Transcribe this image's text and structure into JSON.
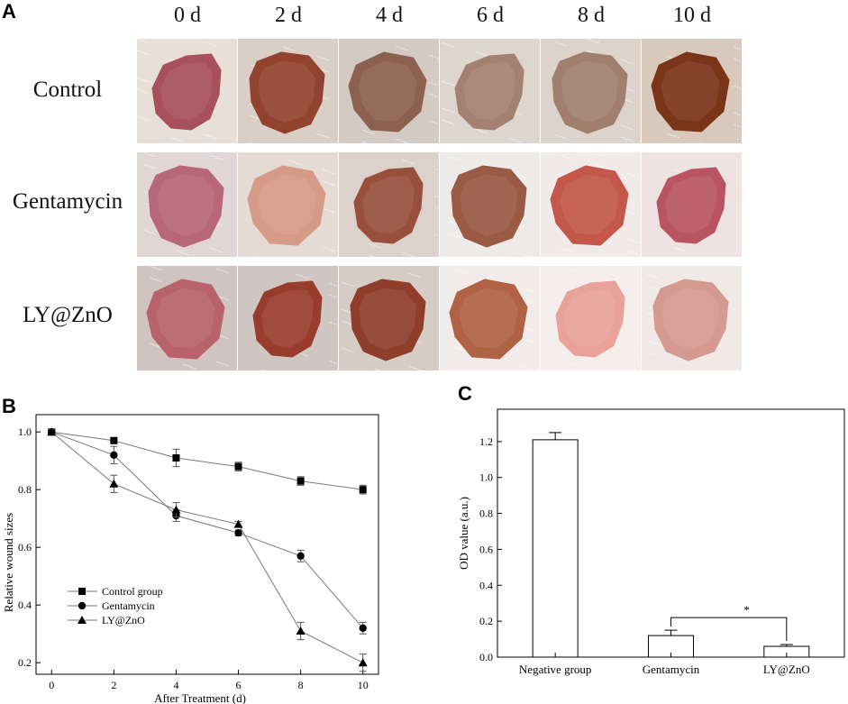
{
  "panels": {
    "a": {
      "letter": "A",
      "days": [
        "0 d",
        "2 d",
        "4 d",
        "6 d",
        "8 d",
        "10 d"
      ],
      "groups": [
        {
          "label": "Control",
          "wounds": [
            {
              "wound": "#a8505c",
              "skin": "#e9dfd9"
            },
            {
              "wound": "#92432f",
              "skin": "#d9cfc6"
            },
            {
              "wound": "#8d6150",
              "skin": "#d3cbc3"
            },
            {
              "wound": "#a4806f",
              "skin": "#ddd6cf"
            },
            {
              "wound": "#a07f6c",
              "skin": "#dcd4cc"
            },
            {
              "wound": "#7a3418",
              "skin": "#d8c9bc"
            }
          ]
        },
        {
          "label": "Gentamycin",
          "wounds": [
            {
              "wound": "#b86778",
              "skin": "#e0d6d3"
            },
            {
              "wound": "#d69b86",
              "skin": "#e6dbd4"
            },
            {
              "wound": "#98503c",
              "skin": "#dcd2cb"
            },
            {
              "wound": "#9a5a44",
              "skin": "#eeeae7"
            },
            {
              "wound": "#c3574a",
              "skin": "#f0ebe8"
            },
            {
              "wound": "#b85560",
              "skin": "#eee2e3"
            }
          ]
        },
        {
          "label": "LY@ZnO",
          "wounds": [
            {
              "wound": "#b8626a",
              "skin": "#cfc4bf"
            },
            {
              "wound": "#983c2e",
              "skin": "#cfc6c1"
            },
            {
              "wound": "#8f3e2c",
              "skin": "#d6ccc6"
            },
            {
              "wound": "#b06244",
              "skin": "#f1ece9"
            },
            {
              "wound": "#e8a29a",
              "skin": "#f4eeec"
            },
            {
              "wound": "#d49a90",
              "skin": "#f1e9e6"
            }
          ]
        }
      ]
    },
    "b": {
      "letter": "B"
    },
    "c": {
      "letter": "C"
    }
  },
  "chart_data": [
    {
      "type": "line",
      "panel": "B",
      "xlabel": "After Treatment (d)",
      "ylabel": "Relative wound sizes",
      "x": [
        0,
        2,
        4,
        6,
        8,
        10
      ],
      "xticks": [
        "0",
        "2",
        "4",
        "6",
        "8",
        "10"
      ],
      "yticks": [
        "0.2",
        "0.4",
        "0.6",
        "0.8",
        "1.0"
      ],
      "xlim": [
        -0.5,
        10.5
      ],
      "ylim": [
        0.16,
        1.06
      ],
      "legend_position": "bottom-left",
      "series": [
        {
          "name": "Control group",
          "marker": "square",
          "values": [
            1.0,
            0.97,
            0.91,
            0.88,
            0.83,
            0.8
          ],
          "errors": [
            0.01,
            0.01,
            0.03,
            0.015,
            0.015,
            0.015
          ]
        },
        {
          "name": "Gentamycin",
          "marker": "circle",
          "values": [
            1.0,
            0.92,
            0.71,
            0.65,
            0.57,
            0.32
          ],
          "errors": [
            0.01,
            0.03,
            0.02,
            0.01,
            0.02,
            0.02
          ]
        },
        {
          "name": "LY@ZnO",
          "marker": "triangle",
          "values": [
            1.0,
            0.82,
            0.73,
            0.68,
            0.31,
            0.2
          ],
          "errors": [
            0.01,
            0.03,
            0.025,
            0.01,
            0.03,
            0.03
          ]
        }
      ]
    },
    {
      "type": "bar",
      "panel": "C",
      "ylabel": "OD value (a.u.)",
      "categories": [
        "Negative group",
        "Gentamycin",
        "LY@ZnO"
      ],
      "values": [
        1.21,
        0.12,
        0.06
      ],
      "errors": [
        0.04,
        0.03,
        0.01
      ],
      "yticks": [
        "0.0",
        "0.2",
        "0.4",
        "0.6",
        "0.8",
        "1.0",
        "1.2"
      ],
      "ylim": [
        0,
        1.38
      ],
      "significance": {
        "between": [
          "Gentamycin",
          "LY@ZnO"
        ],
        "label": "*"
      }
    }
  ],
  "colors": {
    "axis": "#000000",
    "line": "#7a7a7a",
    "marker": "#000000",
    "bar_fill": "#ffffff"
  }
}
